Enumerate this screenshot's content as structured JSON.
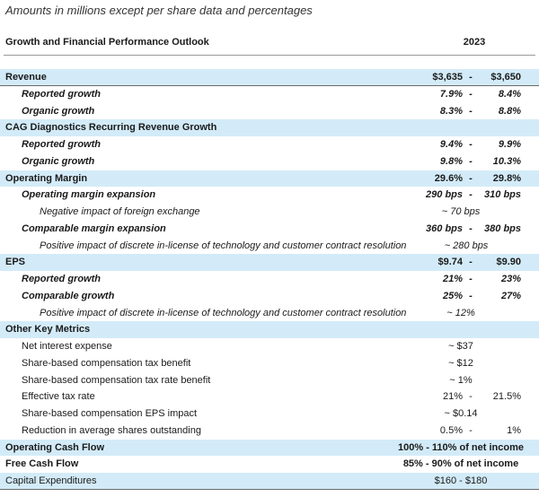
{
  "caption": "Amounts in millions except per share data and percentages",
  "header": {
    "title": "Growth and Financial Performance Outlook",
    "year": "2023"
  },
  "rows": [
    {
      "label": "Revenue",
      "low": "$3,635",
      "dash": "-",
      "high": "$3,650",
      "center": ""
    },
    {
      "label": "Reported growth",
      "low": "7.9%",
      "dash": "-",
      "high": "8.4%",
      "center": ""
    },
    {
      "label": "Organic growth",
      "low": "8.3%",
      "dash": "-",
      "high": "8.8%",
      "center": ""
    },
    {
      "label": "CAG Diagnostics Recurring Revenue Growth",
      "low": "",
      "dash": "",
      "high": "",
      "center": ""
    },
    {
      "label": "Reported growth",
      "low": "9.4%",
      "dash": "-",
      "high": "9.9%",
      "center": ""
    },
    {
      "label": "Organic growth",
      "low": "9.8%",
      "dash": "-",
      "high": "10.3%",
      "center": ""
    },
    {
      "label": "Operating Margin",
      "low": "29.6%",
      "dash": "-",
      "high": "29.8%",
      "center": ""
    },
    {
      "label": "Operating margin expansion",
      "low": "290 bps",
      "dash": "-",
      "high": "310 bps",
      "center": ""
    },
    {
      "label": "Negative impact of foreign exchange",
      "low": "",
      "dash": "",
      "high": "",
      "center": "~ 70 bps"
    },
    {
      "label": "Comparable margin expansion",
      "low": "360 bps",
      "dash": "-",
      "high": "380 bps",
      "center": ""
    },
    {
      "label": "Positive impact of discrete in-license of technology and customer contract resolution",
      "low": "",
      "dash": "",
      "high": "",
      "center": "~ 280 bps"
    },
    {
      "label": "EPS",
      "low": "$9.74",
      "dash": "-",
      "high": "$9.90",
      "center": ""
    },
    {
      "label": "Reported growth",
      "low": "21%",
      "dash": "-",
      "high": "23%",
      "center": ""
    },
    {
      "label": "Comparable growth",
      "low": "25%",
      "dash": "-",
      "high": "27%",
      "center": ""
    },
    {
      "label": "Positive impact of discrete in-license of technology and customer contract resolution",
      "low": "",
      "dash": "",
      "high": "",
      "center": "~ 12%"
    },
    {
      "label": "Other Key Metrics",
      "low": "",
      "dash": "",
      "high": "",
      "center": ""
    },
    {
      "label": "Net interest expense",
      "low": "",
      "dash": "",
      "high": "",
      "center": "~ $37"
    },
    {
      "label": "Share-based compensation tax benefit",
      "low": "",
      "dash": "",
      "high": "",
      "center": "~ $12"
    },
    {
      "label": "Share-based compensation tax rate benefit",
      "low": "",
      "dash": "",
      "high": "",
      "center": "~ 1%"
    },
    {
      "label": "Effective tax rate",
      "low": "21%",
      "dash": "-",
      "high": "21.5%",
      "center": ""
    },
    {
      "label": "Share-based compensation EPS impact",
      "low": "",
      "dash": "",
      "high": "",
      "center": "~ $0.14"
    },
    {
      "label": "Reduction in average shares outstanding",
      "low": "0.5%",
      "dash": "-",
      "high": "1%",
      "center": ""
    },
    {
      "label": "Operating Cash Flow",
      "low": "",
      "dash": "",
      "high": "",
      "center": "100% - 110% of net income"
    },
    {
      "label": "Free Cash Flow",
      "low": "",
      "dash": "",
      "high": "",
      "center": "85% - 90% of net income"
    },
    {
      "label": "Capital Expenditures",
      "low": "",
      "dash": "",
      "high": "",
      "center": "$160 - $180"
    }
  ]
}
